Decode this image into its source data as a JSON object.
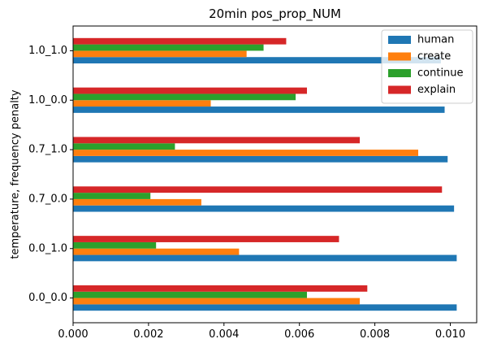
{
  "chart_data": {
    "type": "bar",
    "orientation": "horizontal",
    "title": "20min pos_prop_NUM",
    "xlabel": "",
    "ylabel": "temperature, frequency penalty",
    "categories": [
      "0.0_0.0",
      "0.0_1.0",
      "0.7_0.0",
      "0.7_1.0",
      "1.0_0.0",
      "1.0_1.0"
    ],
    "xlim": [
      0,
      0.0107
    ],
    "xticks": [
      "0.000",
      "0.002",
      "0.004",
      "0.006",
      "0.008",
      "0.010"
    ],
    "series": [
      {
        "name": "human",
        "color": "#1f77b4",
        "values": [
          0.01017,
          0.01017,
          0.0101,
          0.00993,
          0.00985,
          0.00975
        ]
      },
      {
        "name": "create",
        "color": "#ff7f0e",
        "values": [
          0.0076,
          0.0044,
          0.0034,
          0.00915,
          0.00365,
          0.0046
        ]
      },
      {
        "name": "continue",
        "color": "#2ca02c",
        "values": [
          0.0062,
          0.0022,
          0.00205,
          0.0027,
          0.0059,
          0.00505
        ]
      },
      {
        "name": "explain",
        "color": "#d62728",
        "values": [
          0.0078,
          0.00705,
          0.00978,
          0.0076,
          0.0062,
          0.00565
        ]
      }
    ],
    "legend_position": "top-right",
    "grid": false
  }
}
